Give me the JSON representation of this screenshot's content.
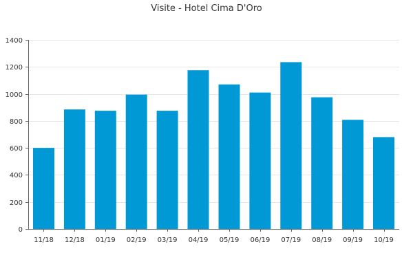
{
  "chart_data": {
    "type": "bar",
    "title": "Visite - Hotel Cima D'Oro",
    "xlabel": "",
    "ylabel": "",
    "categories": [
      "11/18",
      "12/18",
      "01/19",
      "02/19",
      "03/19",
      "04/19",
      "05/19",
      "06/19",
      "07/19",
      "08/19",
      "09/19",
      "10/19"
    ],
    "values": [
      600,
      885,
      875,
      995,
      875,
      1175,
      1070,
      1010,
      1235,
      975,
      808,
      680
    ],
    "ylim": [
      0,
      1400
    ],
    "yticks": [
      0,
      200,
      400,
      600,
      800,
      1000,
      1200,
      1400
    ],
    "grid": true,
    "legend": "none",
    "colors": {
      "bar": "#0099d6",
      "grid": "#e6e6e6",
      "axis": "#666666",
      "text": "#333333"
    }
  }
}
